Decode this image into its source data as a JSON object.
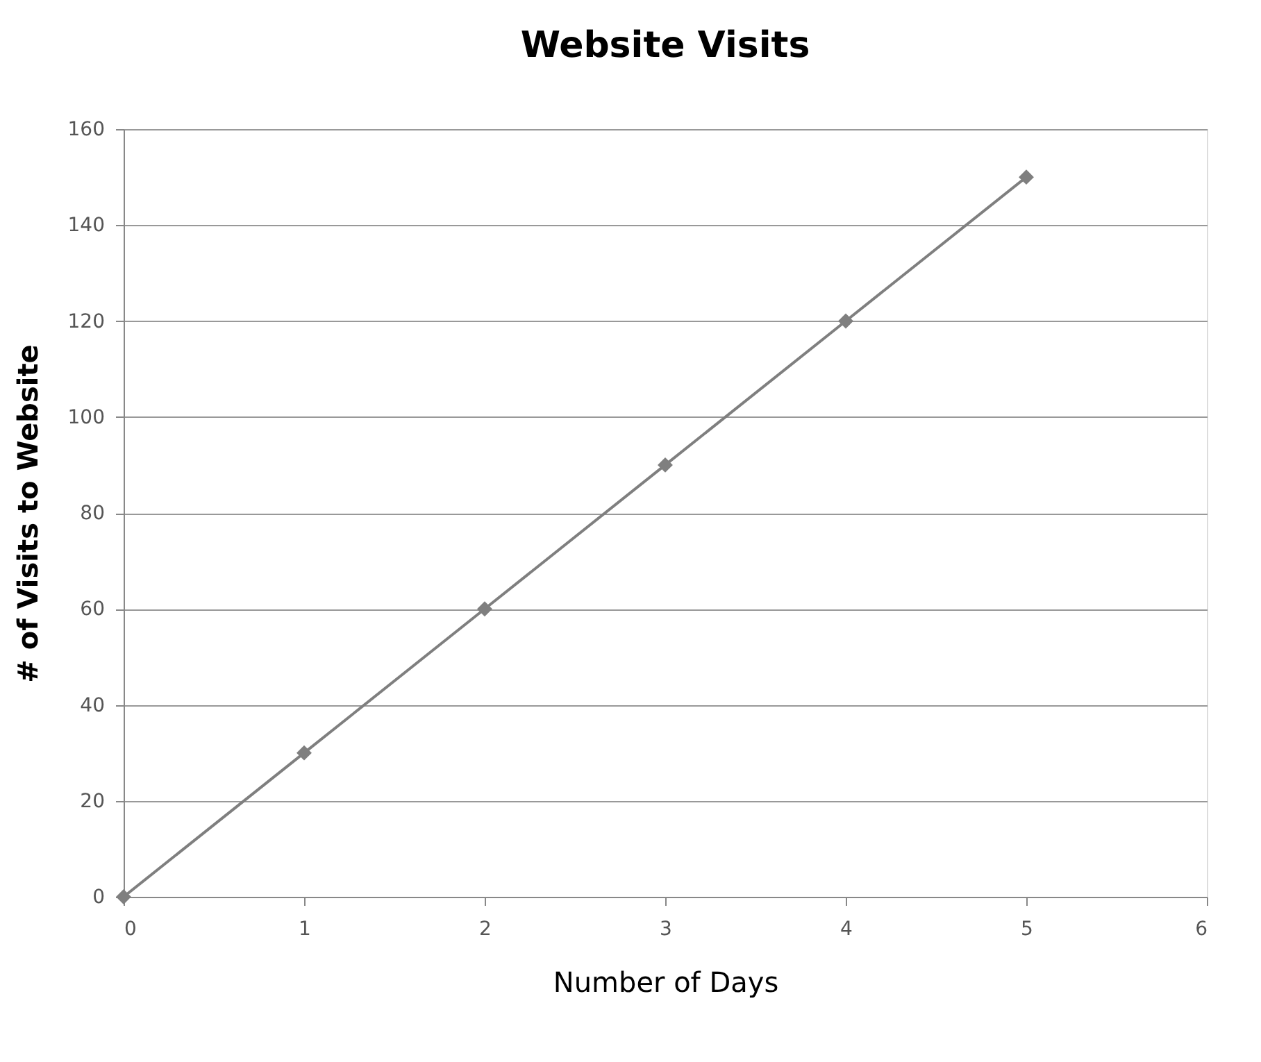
{
  "chart_data": {
    "type": "line",
    "title": "Website Visits",
    "xlabel": "Number of Days",
    "ylabel": "# of Visits to Website",
    "x": [
      0,
      1,
      2,
      3,
      4,
      5
    ],
    "series": [
      {
        "color": "#7f7f7f",
        "values": [
          0,
          30,
          60,
          90,
          120,
          150
        ]
      }
    ],
    "xlim": [
      0,
      6
    ],
    "xticks": [
      0,
      1,
      2,
      3,
      4,
      5,
      6
    ],
    "ylim": [
      0,
      160
    ],
    "yticks": [
      0,
      20,
      40,
      60,
      80,
      100,
      120,
      140,
      160
    ],
    "grid": "y",
    "marker": "diamond",
    "line_style": "solid"
  }
}
